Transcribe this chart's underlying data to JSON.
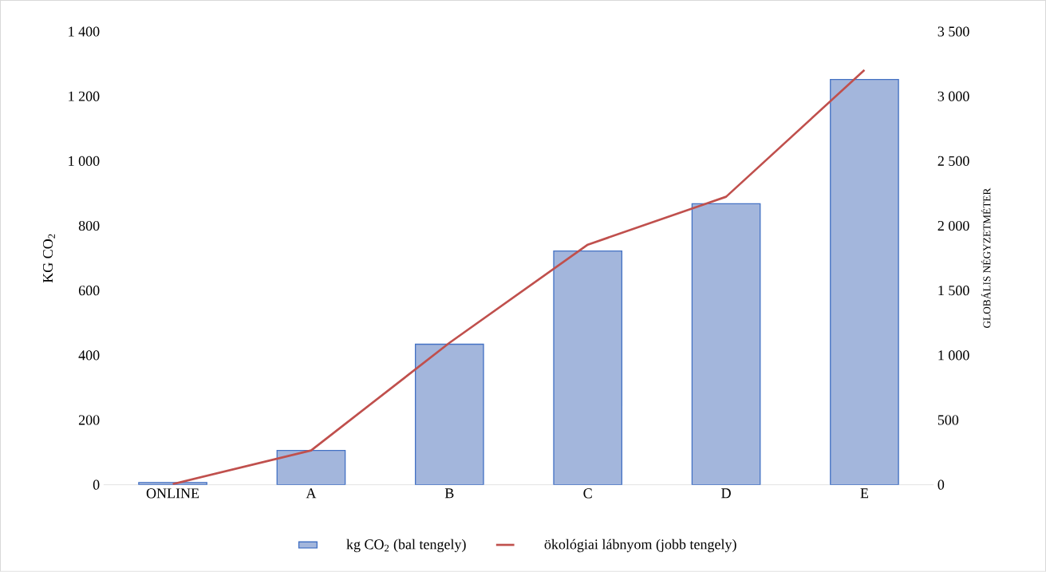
{
  "chart_data": {
    "type": "bar",
    "ylabel": "KG CO$_{2}$",
    "y2label": "GLOBÁLIS NÉGYZETMÉTER",
    "categories": [
      "ONLINE",
      "A",
      "B",
      "C",
      "D",
      "E"
    ],
    "series": [
      {
        "name": "kg CO$_{2}$ (bal tengely)",
        "color": "#a3b6dc",
        "values": [
          7,
          106,
          434,
          722,
          868,
          1252
        ]
      },
      {
        "name": "ökológiai lábnyom (jobb tengely)",
        "type": "line",
        "axis": "y2",
        "color": "#c0504d",
        "values": [
          5,
          265,
          1096,
          1854,
          2224,
          3203
        ]
      }
    ],
    "ylim": [
      0,
      1400
    ],
    "yticks": [
      0,
      200,
      400,
      600,
      800,
      {
        "value": 1000,
        "label": "1 000"
      },
      {
        "value": 1200,
        "label": "1 200"
      },
      {
        "value": 1400,
        "label": "1 400"
      }
    ],
    "y2lim": [
      0,
      3500
    ],
    "y2ticks": [
      0,
      500,
      {
        "value": 1000,
        "label": "1 000"
      },
      {
        "value": 1500,
        "label": "1 500"
      },
      {
        "value": 2000,
        "label": "2 000"
      },
      {
        "value": 2500,
        "label": "2 500"
      },
      {
        "value": 3000,
        "label": "3 000"
      },
      {
        "value": 3500,
        "label": "3 500"
      }
    ],
    "legend": "bottom",
    "grid": false
  }
}
